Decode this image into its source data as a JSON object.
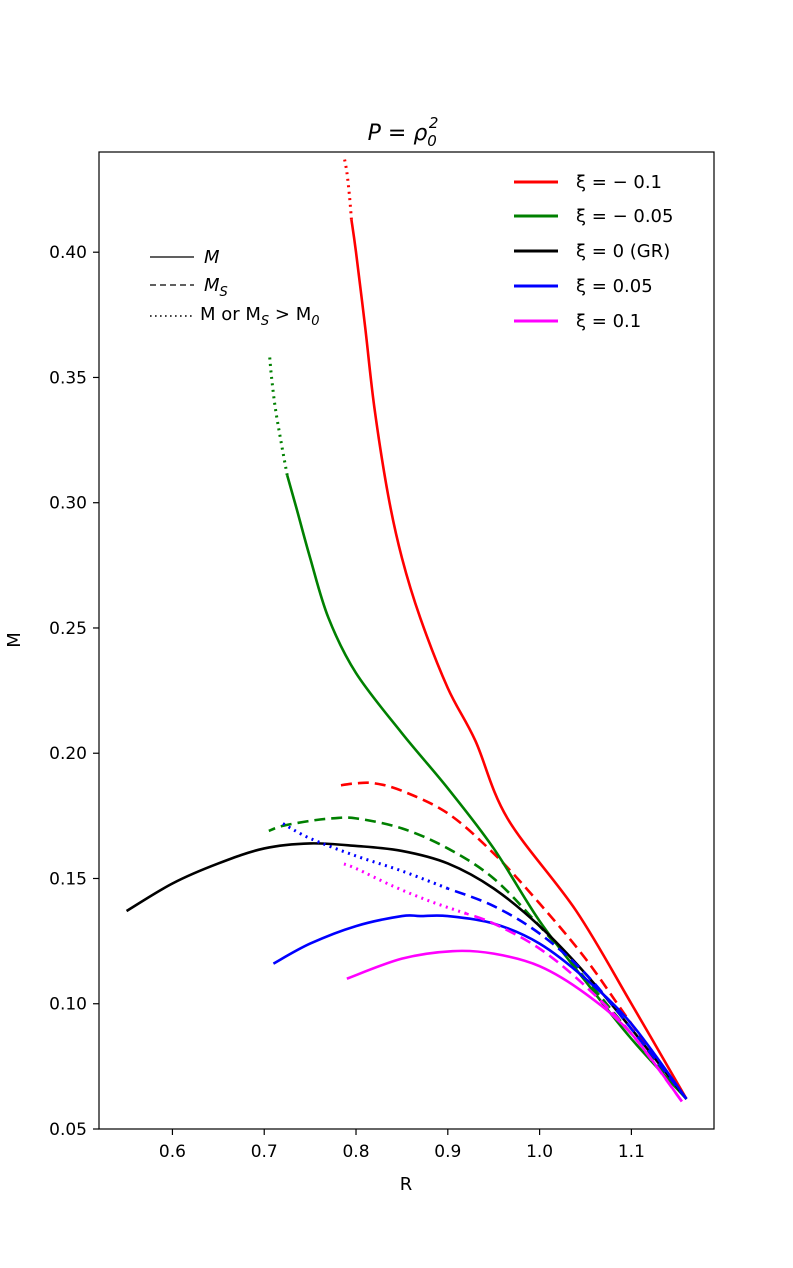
{
  "chart_data": {
    "type": "line",
    "title": "P = ρ₀²",
    "title_parts": {
      "lhs": "P",
      "eq": " = ",
      "base": "ρ",
      "sub": "0",
      "sup": "2"
    },
    "xlabel": "R",
    "ylabel": "M",
    "xlim": [
      0.52,
      1.19
    ],
    "ylim": [
      0.05,
      0.44
    ],
    "xticks": [
      0.6,
      0.7,
      0.8,
      0.9,
      1.0,
      1.1
    ],
    "yticks": [
      0.05,
      0.1,
      0.15,
      0.2,
      0.25,
      0.3,
      0.35,
      0.4
    ],
    "xtick_labels": [
      "0.6",
      "0.7",
      "0.8",
      "0.9",
      "1.0",
      "1.1"
    ],
    "ytick_labels": [
      "0.05",
      "0.10",
      "0.15",
      "0.20",
      "0.25",
      "0.30",
      "0.35",
      "0.40"
    ],
    "grid": false,
    "colors": {
      "xi_m01": "#ff0000",
      "xi_m005": "#008000",
      "xi_0": "#000000",
      "xi_005": "#0000ff",
      "xi_01": "#ff00ff"
    },
    "legend_series": [
      {
        "label": "ξ = − 0.1",
        "color": "#ff0000"
      },
      {
        "label": "ξ = − 0.05",
        "color": "#008000"
      },
      {
        "label": "ξ = 0 (GR)",
        "color": "#000000"
      },
      {
        "label": "ξ = 0.05",
        "color": "#0000ff"
      },
      {
        "label": "ξ = 0.1",
        "color": "#ff00ff"
      }
    ],
    "legend_styles": [
      {
        "style": "solid",
        "text": "M"
      },
      {
        "style": "dashed",
        "text": "M",
        "sub": "S"
      },
      {
        "style": "dotted",
        "text": "M or M",
        "sub": "S",
        "tail": " > M",
        "tail_sub": "0"
      }
    ],
    "legend_styles_text": {
      "solid_label": "M",
      "dashed_label": "M",
      "dashed_sub": "S",
      "dotted_label_a": "M or M",
      "dotted_sub_a": "S",
      "dotted_label_b": " > M",
      "dotted_sub_b": "0"
    },
    "legend_placement": "top-right (series), upper-left (line styles)",
    "series": [
      {
        "name": "xi=-0.1 M",
        "color": "#ff0000",
        "style": "solid",
        "x": [
          1.16,
          1.1,
          1.04,
          0.965,
          0.93,
          0.9,
          0.87,
          0.85,
          0.835,
          0.82,
          0.81,
          0.8,
          0.795
        ],
        "y": [
          0.062,
          0.1,
          0.137,
          0.174,
          0.205,
          0.226,
          0.254,
          0.278,
          0.303,
          0.338,
          0.37,
          0.4,
          0.413
        ]
      },
      {
        "name": "xi=-0.1 M>M0",
        "color": "#ff0000",
        "style": "dotted",
        "x": [
          0.795,
          0.793,
          0.79,
          0.787
        ],
        "y": [
          0.413,
          0.422,
          0.432,
          0.438
        ]
      },
      {
        "name": "xi=-0.1 MS",
        "color": "#ff0000",
        "style": "dashed",
        "x": [
          1.16,
          1.1,
          1.05,
          1.0,
          0.95,
          0.9,
          0.85,
          0.82,
          0.8,
          0.78
        ],
        "y": [
          0.062,
          0.092,
          0.118,
          0.14,
          0.16,
          0.176,
          0.185,
          0.188,
          0.188,
          0.187
        ]
      },
      {
        "name": "xi=-0.05 M",
        "color": "#008000",
        "style": "solid",
        "x": [
          1.16,
          1.1,
          1.05,
          1.0,
          0.95,
          0.9,
          0.85,
          0.8,
          0.77,
          0.75,
          0.735,
          0.725
        ],
        "y": [
          0.062,
          0.086,
          0.109,
          0.133,
          0.162,
          0.186,
          0.208,
          0.232,
          0.254,
          0.278,
          0.298,
          0.311
        ]
      },
      {
        "name": "xi=-0.05 M>M0",
        "color": "#008000",
        "style": "dotted",
        "x": [
          0.725,
          0.718,
          0.712,
          0.708,
          0.706
        ],
        "y": [
          0.311,
          0.325,
          0.338,
          0.35,
          0.358
        ]
      },
      {
        "name": "xi=-0.05 MS",
        "color": "#008000",
        "style": "dashed",
        "x": [
          1.16,
          1.1,
          1.05,
          1.0,
          0.95,
          0.9,
          0.85,
          0.8,
          0.775,
          0.75,
          0.72,
          0.705
        ],
        "y": [
          0.062,
          0.088,
          0.11,
          0.131,
          0.15,
          0.162,
          0.17,
          0.174,
          0.174,
          0.173,
          0.171,
          0.169
        ]
      },
      {
        "name": "xi=0 M",
        "color": "#000000",
        "style": "solid",
        "x": [
          1.16,
          1.1,
          1.05,
          1.0,
          0.95,
          0.9,
          0.85,
          0.8,
          0.75,
          0.7,
          0.65,
          0.6,
          0.55
        ],
        "y": [
          0.062,
          0.09,
          0.112,
          0.131,
          0.146,
          0.156,
          0.161,
          0.163,
          0.164,
          0.162,
          0.156,
          0.148,
          0.137
        ]
      },
      {
        "name": "xi=0.05 M",
        "color": "#0000ff",
        "style": "solid",
        "x": [
          1.16,
          1.1,
          1.05,
          1.0,
          0.95,
          0.9,
          0.87,
          0.85,
          0.8,
          0.75,
          0.71
        ],
        "y": [
          0.062,
          0.092,
          0.11,
          0.124,
          0.132,
          0.135,
          0.135,
          0.135,
          0.131,
          0.124,
          0.116
        ]
      },
      {
        "name": "xi=0.05 MS",
        "color": "#0000ff",
        "style": "dashed",
        "x": [
          1.16,
          1.1,
          1.05,
          1.0,
          0.95,
          0.9
        ],
        "y": [
          0.062,
          0.09,
          0.112,
          0.128,
          0.139,
          0.146
        ]
      },
      {
        "name": "xi=0.05 M>M0",
        "color": "#0000ff",
        "style": "dotted",
        "x": [
          0.9,
          0.85,
          0.8,
          0.75,
          0.72
        ],
        "y": [
          0.146,
          0.153,
          0.159,
          0.166,
          0.172
        ]
      },
      {
        "name": "xi=0.1 M",
        "color": "#ff00ff",
        "style": "solid",
        "x": [
          1.155,
          1.1,
          1.05,
          1.0,
          0.95,
          0.905,
          0.85,
          0.79
        ],
        "y": [
          0.061,
          0.088,
          0.104,
          0.115,
          0.12,
          0.121,
          0.118,
          0.11
        ]
      },
      {
        "name": "xi=0.1 MS",
        "color": "#ff00ff",
        "style": "dashed",
        "x": [
          1.155,
          1.1,
          1.05,
          1.0,
          0.95,
          0.92
        ],
        "y": [
          0.061,
          0.088,
          0.107,
          0.122,
          0.132,
          0.136
        ]
      },
      {
        "name": "xi=0.1 M>M0",
        "color": "#ff00ff",
        "style": "dotted",
        "x": [
          0.92,
          0.88,
          0.84,
          0.8,
          0.785
        ],
        "y": [
          0.136,
          0.141,
          0.147,
          0.154,
          0.156
        ]
      }
    ]
  }
}
